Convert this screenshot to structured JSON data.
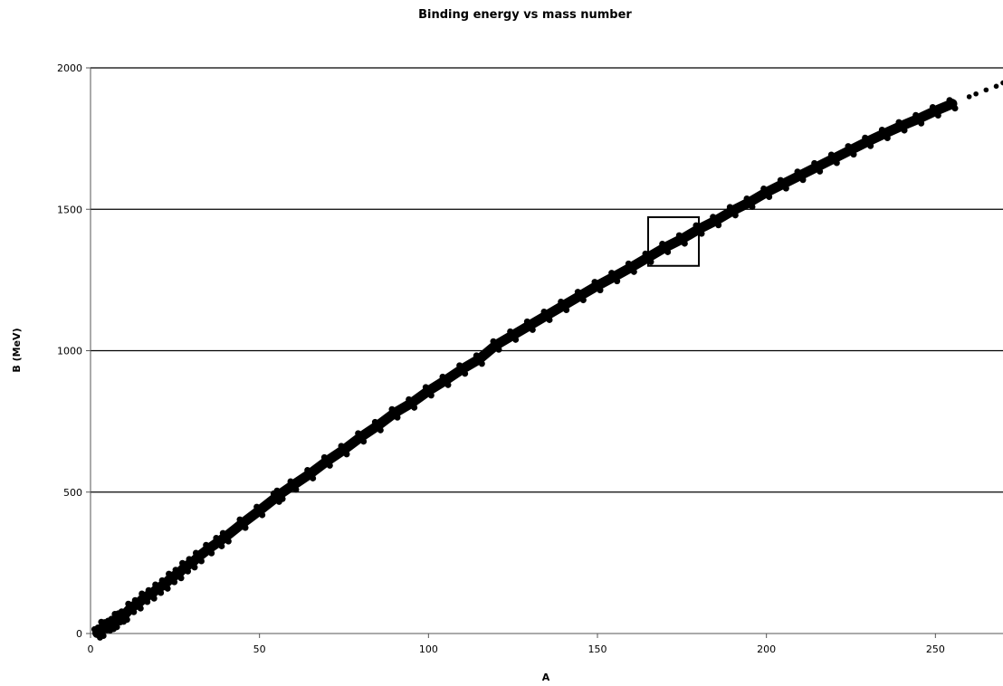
{
  "chart_data": {
    "type": "scatter",
    "title": "Binding energy vs mass number",
    "xlabel": "A",
    "ylabel": "B (MeV)",
    "xlim": [
      0,
      270
    ],
    "ylim": [
      0,
      2000
    ],
    "xticks": [
      0,
      50,
      100,
      150,
      200,
      250
    ],
    "yticks": [
      0,
      500,
      1000,
      1500,
      2000
    ],
    "xtick_labels": [
      "0",
      "50",
      "100",
      "150",
      "200",
      "250"
    ],
    "ytick_labels": [
      "0",
      "500",
      "1000",
      "1500",
      "2000"
    ],
    "grid": "horizontal",
    "legend": "none",
    "marker_color": "#000000",
    "series": [
      {
        "points": [
          [
            2,
            2
          ],
          [
            3,
            8
          ],
          [
            4,
            28
          ],
          [
            5,
            27
          ],
          [
            6,
            32
          ],
          [
            7,
            39
          ],
          [
            8,
            56
          ],
          [
            9,
            58
          ],
          [
            10,
            65
          ],
          [
            12,
            92
          ],
          [
            14,
            105
          ],
          [
            16,
            128
          ],
          [
            18,
            140
          ],
          [
            20,
            160
          ],
          [
            22,
            175
          ],
          [
            24,
            198
          ],
          [
            26,
            212
          ],
          [
            28,
            236
          ],
          [
            30,
            250
          ],
          [
            32,
            272
          ],
          [
            35,
            300
          ],
          [
            38,
            325
          ],
          [
            40,
            342
          ],
          [
            45,
            390
          ],
          [
            50,
            435
          ],
          [
            55,
            482
          ],
          [
            56,
            492
          ],
          [
            60,
            525
          ],
          [
            65,
            565
          ],
          [
            70,
            610
          ],
          [
            75,
            650
          ],
          [
            80,
            695
          ],
          [
            85,
            735
          ],
          [
            90,
            780
          ],
          [
            95,
            815
          ],
          [
            100,
            858
          ],
          [
            105,
            895
          ],
          [
            110,
            935
          ],
          [
            115,
            970
          ],
          [
            120,
            1020
          ],
          [
            125,
            1055
          ],
          [
            130,
            1090
          ],
          [
            135,
            1125
          ],
          [
            140,
            1160
          ],
          [
            145,
            1195
          ],
          [
            150,
            1230
          ],
          [
            155,
            1262
          ],
          [
            160,
            1295
          ],
          [
            165,
            1330
          ],
          [
            170,
            1365
          ],
          [
            175,
            1395
          ],
          [
            180,
            1430
          ],
          [
            185,
            1460
          ],
          [
            190,
            1495
          ],
          [
            195,
            1525
          ],
          [
            200,
            1560
          ],
          [
            205,
            1590
          ],
          [
            210,
            1620
          ],
          [
            215,
            1650
          ],
          [
            220,
            1680
          ],
          [
            225,
            1710
          ],
          [
            230,
            1740
          ],
          [
            235,
            1768
          ],
          [
            240,
            1795
          ],
          [
            245,
            1820
          ],
          [
            250,
            1848
          ],
          [
            255,
            1873
          ],
          [
            260,
            1898
          ],
          [
            262,
            1908
          ],
          [
            265,
            1922
          ],
          [
            268,
            1935
          ],
          [
            270,
            1947
          ]
        ]
      }
    ],
    "annotations": [
      {
        "type": "rectangle",
        "x0": 165,
        "x1": 180,
        "y0": 1300,
        "y1": 1472
      }
    ]
  }
}
